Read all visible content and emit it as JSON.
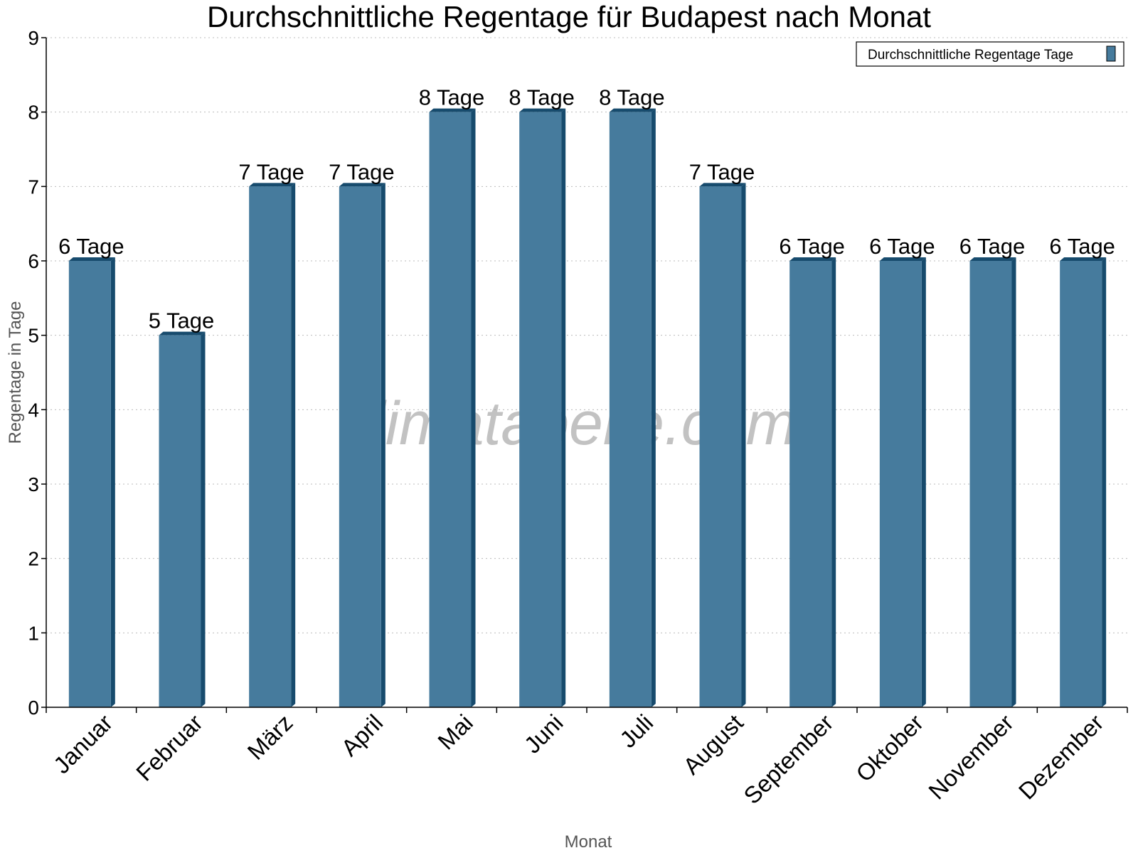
{
  "chart_data": {
    "type": "bar",
    "title": "Durchschnittliche Regentage für Budapest nach Monat",
    "xlabel": "Monat",
    "ylabel": "Regentage in Tage",
    "categories": [
      "Januar",
      "Februar",
      "März",
      "April",
      "Mai",
      "Juni",
      "Juli",
      "August",
      "September",
      "Oktober",
      "November",
      "Dezember"
    ],
    "series": [
      {
        "name": "Durchschnittliche Regentage Tage",
        "values": [
          6,
          5,
          7,
          7,
          8,
          8,
          8,
          7,
          6,
          6,
          6,
          6
        ],
        "color": "#467b9d",
        "shade_color": "#174b6d"
      }
    ],
    "data_labels": [
      "6 Tage",
      "5 Tage",
      "7 Tage",
      "7 Tage",
      "8 Tage",
      "8 Tage",
      "8 Tage",
      "7 Tage",
      "6 Tage",
      "6 Tage",
      "6 Tage",
      "6 Tage"
    ],
    "yticks": [
      0,
      1,
      2,
      3,
      4,
      5,
      6,
      7,
      8,
      9
    ],
    "ylim": [
      0,
      9
    ],
    "grid": "horizontal dotted",
    "legend_position": "top-right",
    "watermark": "klimatabelle.com"
  }
}
